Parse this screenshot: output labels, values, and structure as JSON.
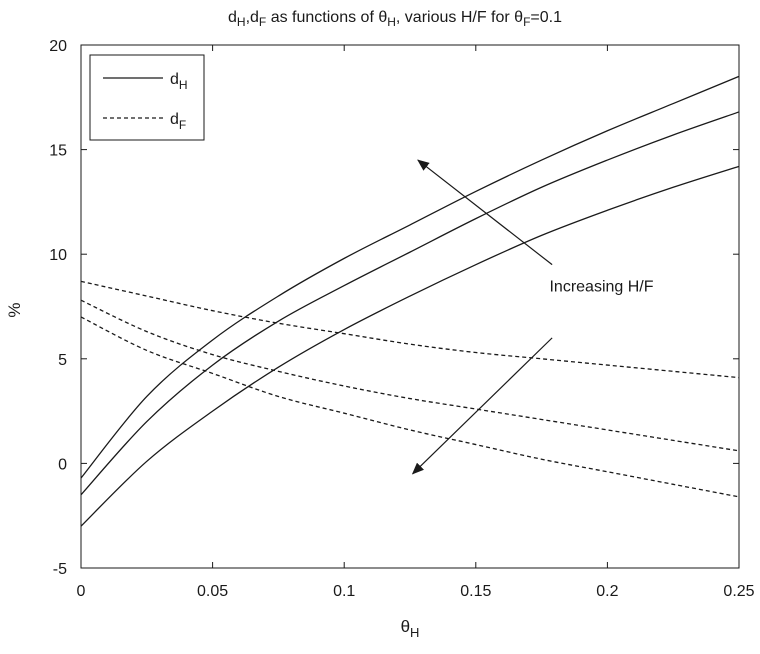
{
  "chart_data": {
    "type": "line",
    "title": "d_H,d_F as functions of θ_H, various H/F for θ_F=0.1",
    "title_parts": {
      "d1": "d",
      "s1": "H",
      "sep": ",",
      "d2": "d",
      "s2": "F",
      "mid": " as functions of θ",
      "s3": "H",
      "mid2": ", various H/F for θ",
      "s4": "F",
      "tail": "=0.1"
    },
    "xlabel": "θ_H",
    "xlabel_parts": {
      "base": "θ",
      "sub": "H"
    },
    "ylabel": "%",
    "xlim": [
      0,
      0.25
    ],
    "ylim": [
      -5,
      20
    ],
    "x_ticks": [
      0,
      0.05,
      0.1,
      0.15,
      0.2,
      0.25
    ],
    "x_tick_labels": [
      "0",
      "0.05",
      "0.1",
      "0.15",
      "0.2",
      "0.25"
    ],
    "y_ticks": [
      -5,
      0,
      5,
      10,
      15,
      20
    ],
    "y_tick_labels": [
      "-5",
      "0",
      "5",
      "10",
      "15",
      "20"
    ],
    "grid": false,
    "legend_position": "top-left",
    "legend": [
      {
        "label": "d_H",
        "base": "d",
        "sub": "H",
        "style": "solid"
      },
      {
        "label": "d_F",
        "base": "d",
        "sub": "F",
        "style": "dashed"
      }
    ],
    "x": [
      0,
      0.025,
      0.05,
      0.075,
      0.1,
      0.125,
      0.15,
      0.175,
      0.2,
      0.225,
      0.25
    ],
    "series": [
      {
        "style": "solid",
        "values": [
          -0.7,
          3.2,
          5.9,
          8.0,
          9.8,
          11.4,
          13.0,
          14.5,
          15.9,
          17.2,
          18.5
        ]
      },
      {
        "style": "solid",
        "values": [
          -1.5,
          2.0,
          4.7,
          6.8,
          8.5,
          10.1,
          11.7,
          13.2,
          14.5,
          15.7,
          16.8
        ]
      },
      {
        "style": "solid",
        "values": [
          -3.0,
          0.1,
          2.5,
          4.6,
          6.4,
          8.0,
          9.5,
          10.9,
          12.1,
          13.2,
          14.2
        ]
      },
      {
        "style": "dashed",
        "values": [
          8.7,
          8.0,
          7.3,
          6.7,
          6.2,
          5.7,
          5.3,
          5.0,
          4.7,
          4.4,
          4.1
        ]
      },
      {
        "style": "dashed",
        "values": [
          7.8,
          6.3,
          5.2,
          4.4,
          3.7,
          3.1,
          2.6,
          2.1,
          1.6,
          1.1,
          0.6
        ]
      },
      {
        "style": "dashed",
        "values": [
          7.0,
          5.4,
          4.3,
          3.2,
          2.4,
          1.6,
          0.9,
          0.2,
          -0.4,
          -1.0,
          -1.6
        ]
      }
    ],
    "annotations": {
      "label": "Increasing H/F",
      "label_at": [
        0.178,
        8.5
      ],
      "arrows": [
        {
          "from": [
            0.179,
            9.5
          ],
          "to": [
            0.128,
            14.5
          ]
        },
        {
          "from": [
            0.179,
            6.0
          ],
          "to": [
            0.126,
            -0.5
          ]
        }
      ]
    }
  }
}
